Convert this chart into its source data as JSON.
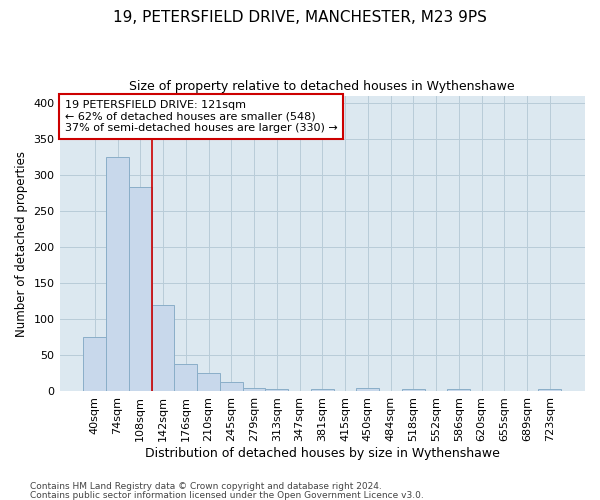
{
  "title": "19, PETERSFIELD DRIVE, MANCHESTER, M23 9PS",
  "subtitle": "Size of property relative to detached houses in Wythenshawe",
  "xlabel": "Distribution of detached houses by size in Wythenshawe",
  "ylabel": "Number of detached properties",
  "footer1": "Contains HM Land Registry data © Crown copyright and database right 2024.",
  "footer2": "Contains public sector information licensed under the Open Government Licence v3.0.",
  "categories": [
    "40sqm",
    "74sqm",
    "108sqm",
    "142sqm",
    "176sqm",
    "210sqm",
    "245sqm",
    "279sqm",
    "313sqm",
    "347sqm",
    "381sqm",
    "415sqm",
    "450sqm",
    "484sqm",
    "518sqm",
    "552sqm",
    "586sqm",
    "620sqm",
    "655sqm",
    "689sqm",
    "723sqm"
  ],
  "values": [
    75,
    325,
    283,
    120,
    38,
    25,
    13,
    5,
    3,
    0,
    3,
    0,
    5,
    0,
    3,
    0,
    3,
    0,
    0,
    0,
    3
  ],
  "bar_color": "#c8d8eb",
  "bar_edge_color": "#8aaec8",
  "red_line_x": 2.5,
  "annotation_title": "19 PETERSFIELD DRIVE: 121sqm",
  "annotation_line1": "← 62% of detached houses are smaller (548)",
  "annotation_line2": "37% of semi-detached houses are larger (330) →",
  "annotation_box_facecolor": "#ffffff",
  "annotation_box_edgecolor": "#cc0000",
  "red_line_color": "#cc0000",
  "grid_color": "#b8ccd8",
  "background_color": "#dce8f0",
  "ylim": [
    0,
    410
  ],
  "yticks": [
    0,
    50,
    100,
    150,
    200,
    250,
    300,
    350,
    400
  ],
  "title_fontsize": 11,
  "subtitle_fontsize": 9,
  "ylabel_fontsize": 8.5,
  "xlabel_fontsize": 9,
  "tick_fontsize": 8,
  "annotation_fontsize": 8,
  "footer_fontsize": 6.5
}
